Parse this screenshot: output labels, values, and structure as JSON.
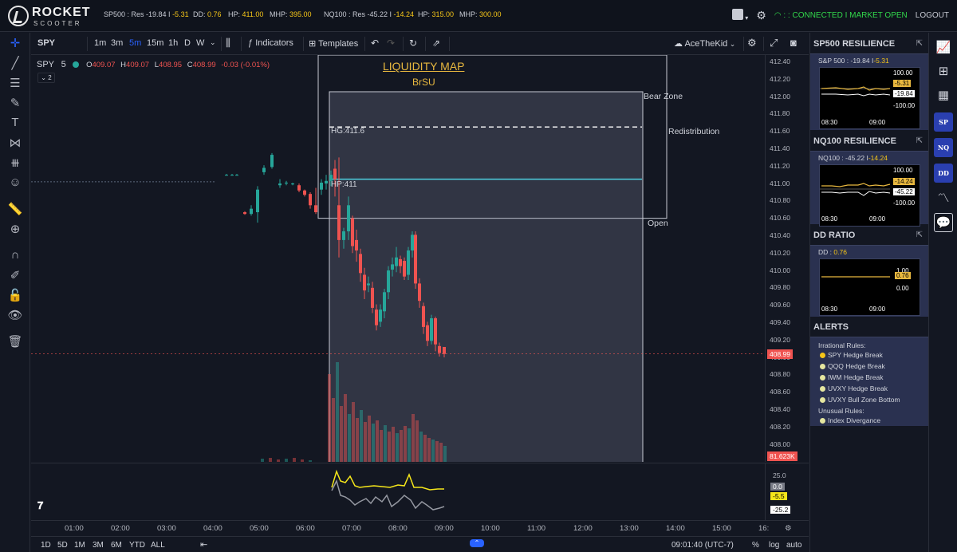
{
  "brand": {
    "line1": "ROCKET",
    "line2": "SCOOTER"
  },
  "topstats": {
    "sp500_label": "SP500 : Res -19.84 I ",
    "sp500_val": "-5.31",
    "dd_label": "DD: ",
    "dd_val": "0.76",
    "hp1_label": "HP: ",
    "hp1_val": "411.00",
    "mhp1_label": "MHP: ",
    "mhp1_val": "395.00",
    "nq_label": "NQ100 : Res -45.22 I ",
    "nq_val": "-14.24",
    "hp2_label": "HP: ",
    "hp2_val": "315.00",
    "mhp2_label": "MHP: ",
    "mhp2_val": "300.00",
    "status": ": : CONNECTED I MARKET OPEN",
    "logout": "LOGOUT"
  },
  "toolbar": {
    "symbol": "SPY",
    "intervals": [
      "1m",
      "3m",
      "5m",
      "15m",
      "1h",
      "D",
      "W"
    ],
    "selected_interval": "5m",
    "indicators": "Indicators",
    "templates": "Templates",
    "layout_name": "AceTheKid"
  },
  "legend": {
    "symbol": "SPY",
    "interval": "5",
    "o_label": "O",
    "o": "409.07",
    "h_label": "H",
    "h": "409.07",
    "l_label": "L",
    "l": "408.95",
    "c_label": "C",
    "c": "408.99",
    "change": "-0.03 (-0.01%)",
    "hidden_count": "2"
  },
  "annotations": {
    "title": "LIQUIDITY MAP",
    "subtitle": "BrSU",
    "bear_zone": "Bear Zone",
    "redistribution": "Redistribution",
    "open": "Open",
    "hg": "HG:411.6",
    "hp": "HP:411"
  },
  "chart_data": {
    "type": "candlestick",
    "price_ticks": [
      "412.40",
      "412.20",
      "412.00",
      "411.80",
      "411.60",
      "411.40",
      "411.20",
      "411.00",
      "410.80",
      "410.60",
      "410.40",
      "410.20",
      "410.00",
      "409.80",
      "409.60",
      "409.40",
      "409.20",
      "409.00",
      "408.80",
      "408.60",
      "408.40",
      "408.20",
      "408.00"
    ],
    "time_ticks": [
      "01:00",
      "02:00",
      "03:00",
      "04:00",
      "05:00",
      "06:00",
      "07:00",
      "08:00",
      "09:00",
      "10:00",
      "11:00",
      "12:00",
      "13:00",
      "14:00",
      "15:00",
      "16:"
    ],
    "last_price": "408.99",
    "volume_label": "81.623K",
    "levels": {
      "hg": 411.6,
      "hp": 411.0,
      "open": 410.55
    }
  },
  "oscillator": {
    "v1": "25.0",
    "v2": "0.0",
    "v3": "-5.5",
    "v4": "-25.2"
  },
  "bottombar": {
    "ranges": [
      "1D",
      "5D",
      "1M",
      "3M",
      "6M",
      "YTD",
      "ALL"
    ],
    "clock": "09:01:40 (UTC-7)",
    "pct": "%",
    "log": "log",
    "auto": "auto"
  },
  "widgets": {
    "sp500": {
      "title": "SP500 RESILIENCE",
      "info_label": "S&P 500 : -19.84 I",
      "info_val": "-5.31",
      "ax1": "100.00",
      "badge1": "-5.31",
      "badge2": "-19.84",
      "ax2": "-100.00",
      "t1": "08:30",
      "t2": "09:00"
    },
    "nq100": {
      "title": "NQ100 RESILIENCE",
      "info_label": "NQ100 : -45.22 I",
      "info_val": "-14.24",
      "ax1": "100.00",
      "badge1": "-14.24",
      "badge2": "-45.22",
      "ax2": "-100.00",
      "t1": "08:30",
      "t2": "09:00"
    },
    "dd": {
      "title": "DD RATIO",
      "info_label": "DD : ",
      "info_val": "0.76",
      "ax1": "1.00",
      "badge1": "0.76",
      "ax2": "0.00",
      "t1": "08:30",
      "t2": "09:00"
    },
    "alerts": {
      "title": "ALERTS",
      "irrational_label": "Irrational Rules:",
      "irrational": [
        "SPY Hedge Break",
        "QQQ Hedge Break",
        "IWM Hedge Break",
        "UVXY Hedge Break",
        "UVXY Bull Zone Bottom"
      ],
      "unusual_label": "Unusual Rules:",
      "unusual": [
        "Index Divergance"
      ]
    }
  },
  "side_icons": {
    "sp": "SP",
    "nq": "NQ",
    "dd": "DD"
  },
  "colors": {
    "bull": "#26a69a",
    "bear": "#ef5350",
    "accent": "#2962ff",
    "gold": "#e8b83f"
  }
}
